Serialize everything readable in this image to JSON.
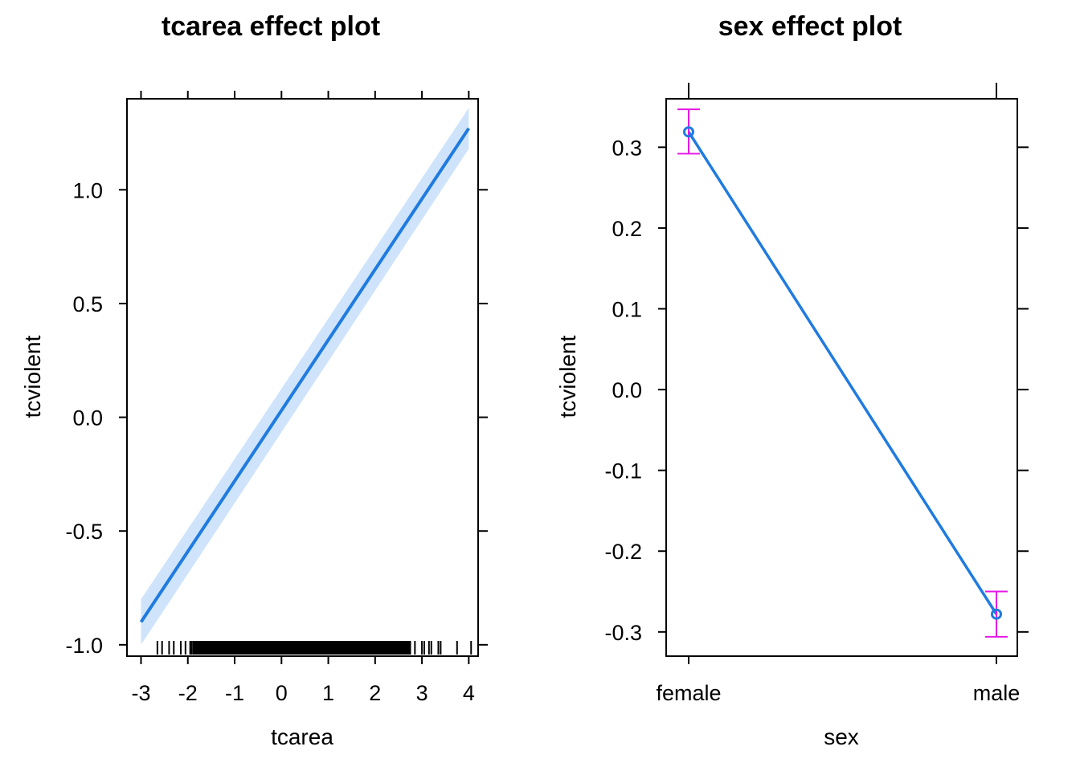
{
  "colors": {
    "line": "#1f7be0",
    "band": "#cfe4fa",
    "errorbar": "#e617e6",
    "axis": "#000000",
    "rug": "#000000"
  },
  "chart_data": [
    {
      "type": "line",
      "title": "tcarea effect plot",
      "xlabel": "tcarea",
      "ylabel": "tcviolent",
      "xlim": [
        -3.3,
        4.2
      ],
      "ylim": [
        -1.05,
        1.4
      ],
      "x_ticks": [
        -3,
        -2,
        -1,
        0,
        1,
        2,
        3,
        4
      ],
      "x_tick_labels": [
        "-3",
        "-2",
        "-1",
        "0",
        "1",
        "2",
        "3",
        "4"
      ],
      "y_ticks": [
        -1.0,
        -0.5,
        0.0,
        0.5,
        1.0
      ],
      "y_tick_labels": [
        "-1.0",
        "-0.5",
        "0.0",
        "0.5",
        "1.0"
      ],
      "series": [
        {
          "x": [
            -3,
            4
          ],
          "y": [
            -0.9,
            1.27
          ],
          "lower": [
            -1.0,
            1.18
          ],
          "upper": [
            -0.8,
            1.36
          ]
        }
      ],
      "rug": {
        "sparse_x": [
          -2.65,
          -2.55,
          -2.4,
          -2.3,
          -2.15,
          -2.05,
          -1.95,
          -1.92,
          -1.85,
          -1.75,
          -1.7,
          2.75,
          2.85,
          3.0,
          3.05,
          3.15,
          3.2,
          3.35,
          3.4,
          3.75,
          4.05
        ],
        "dense_range": [
          -1.9,
          2.75
        ]
      }
    },
    {
      "type": "line",
      "title": "sex effect plot",
      "xlabel": "sex",
      "ylabel": "tcviolent",
      "categories": [
        "female",
        "male"
      ],
      "ylim": [
        -0.33,
        0.36
      ],
      "y_ticks": [
        -0.3,
        -0.2,
        -0.1,
        0.0,
        0.1,
        0.2,
        0.3
      ],
      "y_tick_labels": [
        "-0.3",
        "-0.2",
        "-0.1",
        "0.0",
        "0.1",
        "0.2",
        "0.3"
      ],
      "series": [
        {
          "values": [
            0.319,
            -0.278
          ],
          "lower": [
            0.292,
            -0.306
          ],
          "upper": [
            0.347,
            -0.25
          ]
        }
      ]
    }
  ]
}
